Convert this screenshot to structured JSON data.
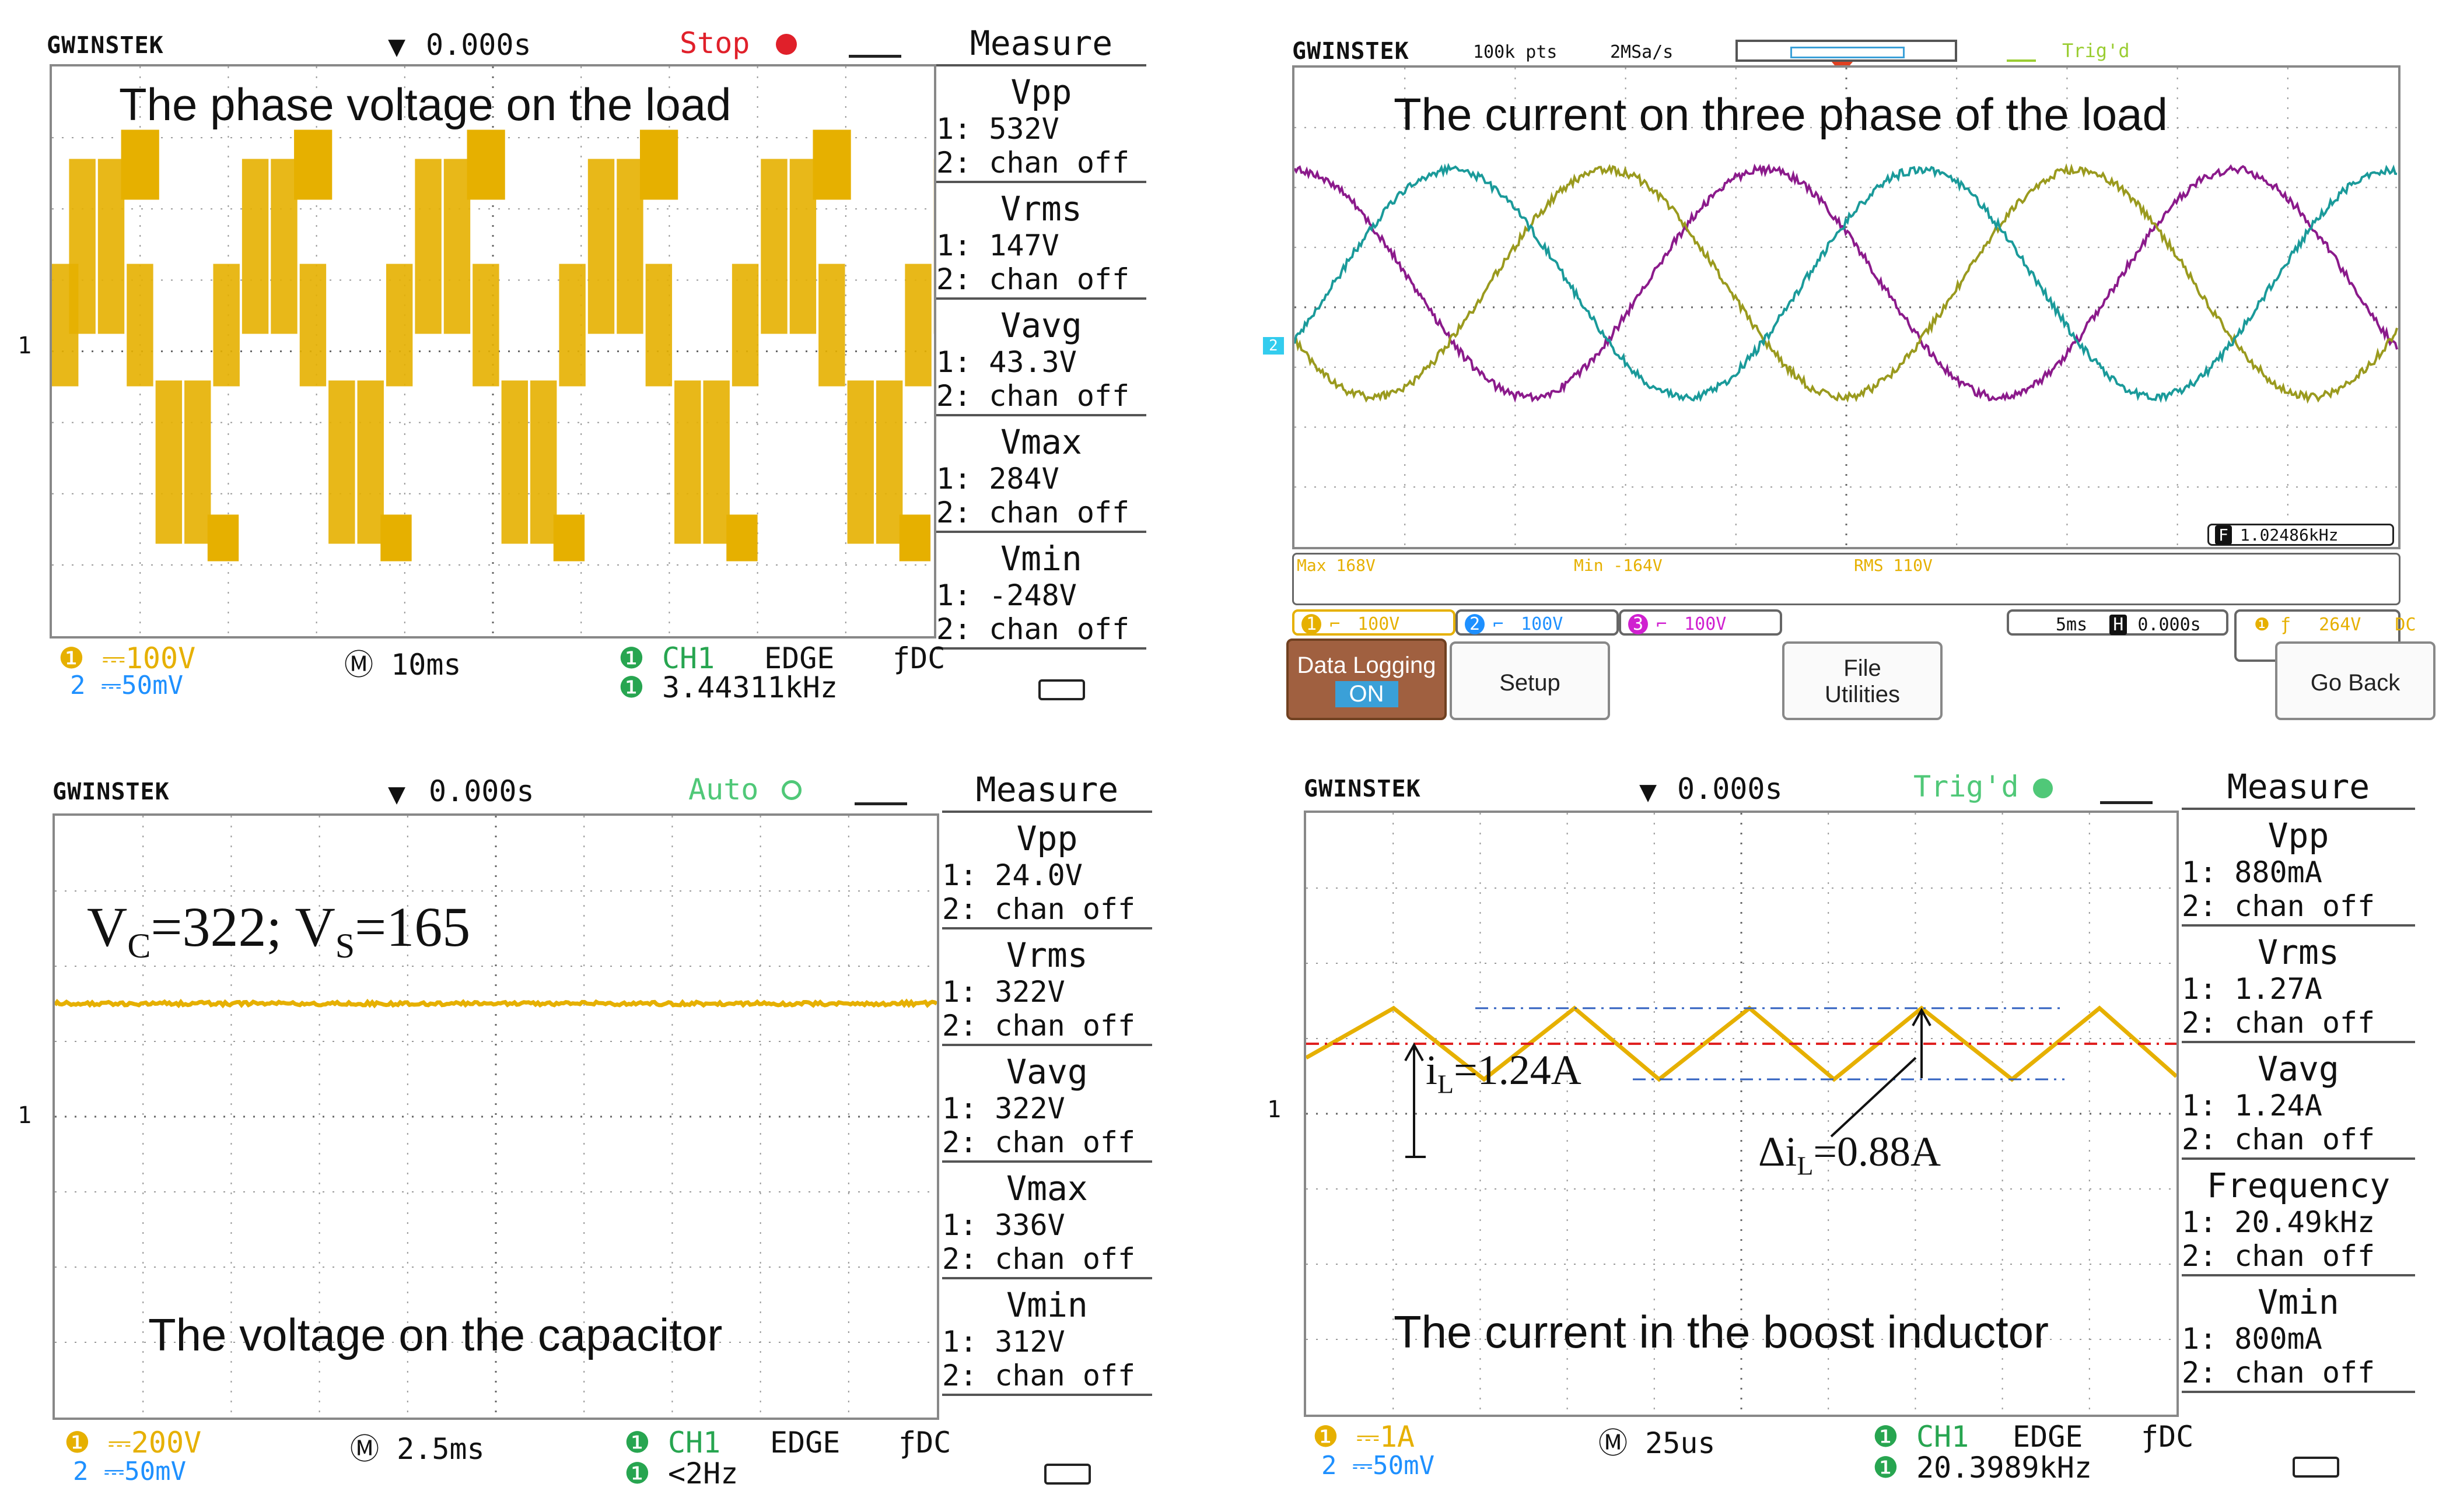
{
  "panel1": {
    "brand": "GWINSTEK",
    "time": "0.000s",
    "state": "Stop",
    "state_color": "#e0202a",
    "title": "The phase voltage on the load",
    "trace_color": "#e6b000",
    "measure_title": "Measure",
    "measures": [
      {
        "name": "Vpp",
        "ch1": "1: 532V",
        "ch2": "2: chan off"
      },
      {
        "name": "Vrms",
        "ch1": "1: 147V",
        "ch2": "2: chan off"
      },
      {
        "name": "Vavg",
        "ch1": "1: 43.3V",
        "ch2": "2: chan off"
      },
      {
        "name": "Vmax",
        "ch1": "1: 284V",
        "ch2": "2: chan off"
      },
      {
        "name": "Vmin",
        "ch1": "1: -248V",
        "ch2": "2: chan off"
      }
    ],
    "ch1_scale": "100V",
    "ch2_scale": "50mV",
    "timebase": "10ms",
    "trig_source": "CH1",
    "trig_type": "EDGE",
    "coupling": "DC",
    "frequency": "3.44311kHz",
    "ch_marker": "1"
  },
  "panel2": {
    "brand": "GWINSTEK",
    "points": "100k pts",
    "rate": "2MSa/s",
    "state": "Trig'd",
    "state_color": "#9acd32",
    "title": "The current on three phase of the load",
    "phase_colors": [
      "#8b1a8b",
      "#9a9a1e",
      "#1a9a9a"
    ],
    "ch_marker": "2",
    "freq_badge": "F",
    "freq_value": "1.02486kHz",
    "stats": [
      "Max 168V",
      "Min -164V",
      "RMS 110V"
    ],
    "channels": [
      {
        "num": "1",
        "scale": "100V",
        "color": "#e6b000"
      },
      {
        "num": "2",
        "scale": "100V",
        "color": "#1e90ff"
      },
      {
        "num": "3",
        "scale": "100V",
        "color": "#d020d0"
      }
    ],
    "timebase": "5ms",
    "delay_badge": "H",
    "delay": "0.000s",
    "trig_level": "264V",
    "trig_coupling": "DC",
    "buttons": {
      "data_logging": "Data Logging",
      "data_logging_state": "ON",
      "setup": "Setup",
      "file_line1": "File",
      "file_line2": "Utilities",
      "go_back": "Go Back"
    }
  },
  "panel3": {
    "brand": "GWINSTEK",
    "time": "0.000s",
    "state": "Auto",
    "state_color": "#50c878",
    "title": "The voltage on the capacitor",
    "annotation": {
      "v": "V",
      "c_sub": "C",
      "eq1": "=322; V",
      "s_sub": "S",
      "eq2": "=165"
    },
    "trace_color": "#e6b000",
    "measure_title": "Measure",
    "measures": [
      {
        "name": "Vpp",
        "ch1": "1: 24.0V",
        "ch2": "2: chan off"
      },
      {
        "name": "Vrms",
        "ch1": "1: 322V",
        "ch2": "2: chan off"
      },
      {
        "name": "Vavg",
        "ch1": "1: 322V",
        "ch2": "2: chan off"
      },
      {
        "name": "Vmax",
        "ch1": "1: 336V",
        "ch2": "2: chan off"
      },
      {
        "name": "Vmin",
        "ch1": "1: 312V",
        "ch2": "2: chan off"
      }
    ],
    "ch1_scale": "200V",
    "ch2_scale": "50mV",
    "timebase": "2.5ms",
    "trig_source": "CH1",
    "trig_type": "EDGE",
    "coupling": "DC",
    "frequency": "<2Hz",
    "ch_marker": "1"
  },
  "panel4": {
    "brand": "GWINSTEK",
    "time": "0.000s",
    "state": "Trig'd",
    "state_color": "#50c878",
    "title": "The current in the boost inductor",
    "annot_il": {
      "i": "i",
      "sub": "L",
      "rest": "=1.24A"
    },
    "annot_dil": {
      "d": "Δi",
      "sub": "L",
      "rest": "=0.88A"
    },
    "trace_color": "#e6b000",
    "measure_title": "Measure",
    "measures": [
      {
        "name": "Vpp",
        "ch1": "1: 880mA",
        "ch2": "2: chan off"
      },
      {
        "name": "Vrms",
        "ch1": "1: 1.27A",
        "ch2": "2: chan off"
      },
      {
        "name": "Vavg",
        "ch1": "1: 1.24A",
        "ch2": "2: chan off"
      },
      {
        "name": "Frequency",
        "ch1": "1: 20.49kHz",
        "ch2": "2: chan off"
      },
      {
        "name": "Vmin",
        "ch1": "1: 800mA",
        "ch2": "2: chan off"
      }
    ],
    "ch1_scale": "1A",
    "ch2_scale": "50mV",
    "timebase": "25us",
    "trig_source": "CH1",
    "trig_type": "EDGE",
    "coupling": "DC",
    "frequency": "20.3989kHz",
    "ch_marker": "1"
  }
}
